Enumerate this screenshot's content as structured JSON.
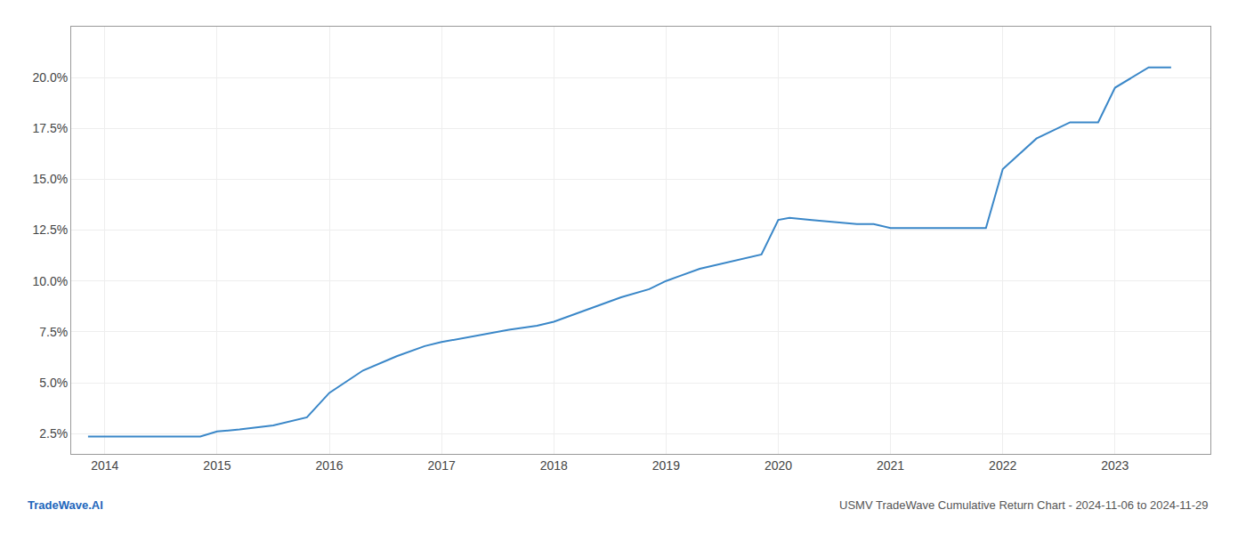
{
  "chart_data": {
    "type": "line",
    "x": [
      2013.85,
      2014.0,
      2014.3,
      2014.6,
      2014.85,
      2015.0,
      2015.2,
      2015.5,
      2015.8,
      2016.0,
      2016.3,
      2016.6,
      2016.85,
      2017.0,
      2017.3,
      2017.6,
      2017.85,
      2018.0,
      2018.3,
      2018.6,
      2018.85,
      2019.0,
      2019.3,
      2019.6,
      2019.85,
      2020.0,
      2020.1,
      2020.3,
      2020.5,
      2020.7,
      2020.85,
      2021.0,
      2021.3,
      2021.6,
      2021.85,
      2022.0,
      2022.3,
      2022.6,
      2022.85,
      2023.0,
      2023.3,
      2023.5
    ],
    "values": [
      0.0235,
      0.0235,
      0.0235,
      0.0235,
      0.0235,
      0.026,
      0.027,
      0.029,
      0.033,
      0.045,
      0.056,
      0.063,
      0.068,
      0.07,
      0.073,
      0.076,
      0.078,
      0.08,
      0.086,
      0.092,
      0.096,
      0.1,
      0.106,
      0.11,
      0.113,
      0.13,
      0.131,
      0.13,
      0.129,
      0.128,
      0.128,
      0.126,
      0.126,
      0.126,
      0.126,
      0.155,
      0.17,
      0.178,
      0.178,
      0.195,
      0.205,
      0.205
    ],
    "color": "#3a87c8",
    "xlim": [
      2013.7,
      2023.85
    ],
    "ylim": [
      0.015,
      0.225
    ],
    "xticks": [
      2014,
      2015,
      2016,
      2017,
      2018,
      2019,
      2020,
      2021,
      2022,
      2023
    ],
    "yticks": [
      {
        "value": 0.025,
        "label": "2.5%"
      },
      {
        "value": 0.05,
        "label": "5.0%"
      },
      {
        "value": 0.075,
        "label": "7.5%"
      },
      {
        "value": 0.1,
        "label": "10.0%"
      },
      {
        "value": 0.125,
        "label": "12.5%"
      },
      {
        "value": 0.15,
        "label": "15.0%"
      },
      {
        "value": 0.175,
        "label": "17.5%"
      },
      {
        "value": 0.2,
        "label": "20.0%"
      }
    ],
    "grid": true,
    "annotations": [
      {
        "text": "TradeWave.AI",
        "color": "#2266bb"
      },
      {
        "text": "USMV TradeWave Cumulative Return Chart - 2024-11-06 to 2024-11-29",
        "color": "#555555"
      }
    ]
  }
}
